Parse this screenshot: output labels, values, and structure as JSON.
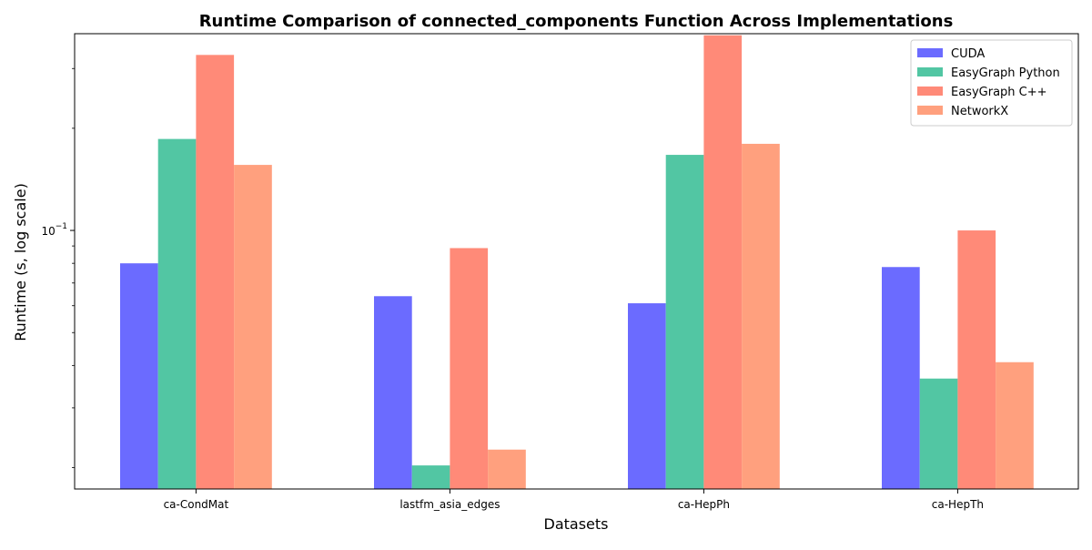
{
  "chart_data": {
    "type": "bar",
    "title": "Runtime Comparison of connected_components Function Across Implementations",
    "xlabel": "Datasets",
    "ylabel": "Runtime (s, log scale)",
    "yscale": "log",
    "ylim": [
      0.0173,
      0.38
    ],
    "ytick_label": {
      "base": "10",
      "exp": "−1",
      "value": 0.1
    },
    "categories": [
      "ca-CondMat",
      "lastfm_asia_edges",
      "ca-HepPh",
      "ca-HepTh"
    ],
    "series": [
      {
        "name": "CUDA",
        "color": "#6B6BFF",
        "values": [
          0.08,
          0.064,
          0.061,
          0.078
        ]
      },
      {
        "name": "EasyGraph Python",
        "color": "#52C6A3",
        "values": [
          0.186,
          0.0203,
          0.167,
          0.0366
        ]
      },
      {
        "name": "EasyGraph C++",
        "color": "#FF8A78",
        "values": [
          0.329,
          0.0887,
          0.376,
          0.1
        ]
      },
      {
        "name": "NetworkX",
        "color": "#FFA07E",
        "values": [
          0.156,
          0.0226,
          0.18,
          0.0409
        ]
      }
    ],
    "legend": {
      "location": "top-right"
    },
    "grid": false
  }
}
